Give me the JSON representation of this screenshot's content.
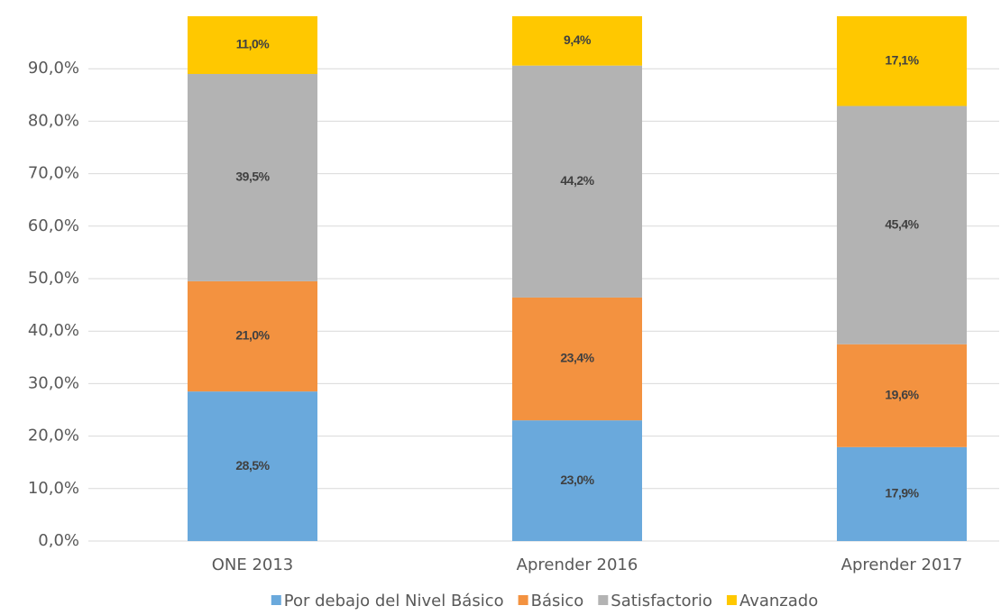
{
  "chart_data": {
    "type": "stacked_bar",
    "categories": [
      "ONE 2013",
      "Aprender 2016",
      "Aprender 2017"
    ],
    "series": [
      {
        "name": "Por debajo del Nivel Básico",
        "color": "#6aa9dc",
        "values": [
          28.5,
          23.0,
          17.9
        ],
        "value_labels": [
          "28,5%",
          "23,0%",
          "17,9%"
        ]
      },
      {
        "name": "Básico",
        "color": "#f39240",
        "values": [
          21.0,
          23.4,
          19.6
        ],
        "value_labels": [
          "21,0%",
          "23,4%",
          "19,6%"
        ]
      },
      {
        "name": "Satisfactorio",
        "color": "#b3b3b3",
        "values": [
          39.5,
          44.2,
          45.4
        ],
        "value_labels": [
          "39,5%",
          "44,2%",
          "45,4%"
        ]
      },
      {
        "name": "Avanzado",
        "color": "#ffc800",
        "values": [
          11.0,
          9.4,
          17.1
        ],
        "value_labels": [
          "11,0%",
          "9,4%",
          "17,1%"
        ]
      }
    ],
    "ylim": [
      0,
      100
    ],
    "yticks": [
      {
        "value": 0,
        "label": "0,0%"
      },
      {
        "value": 10,
        "label": "10,0%"
      },
      {
        "value": 20,
        "label": "20,0%"
      },
      {
        "value": 30,
        "label": "30,0%"
      },
      {
        "value": 40,
        "label": "40,0%"
      },
      {
        "value": 50,
        "label": "50,0%"
      },
      {
        "value": 60,
        "label": "60,0%"
      },
      {
        "value": 70,
        "label": "70,0%"
      },
      {
        "value": 80,
        "label": "80,0%"
      },
      {
        "value": 90,
        "label": "90,0%"
      },
      {
        "value": {
          "_": 0
        },
        "label": ""
      }
    ],
    "grid": true,
    "legend": "bottom"
  }
}
